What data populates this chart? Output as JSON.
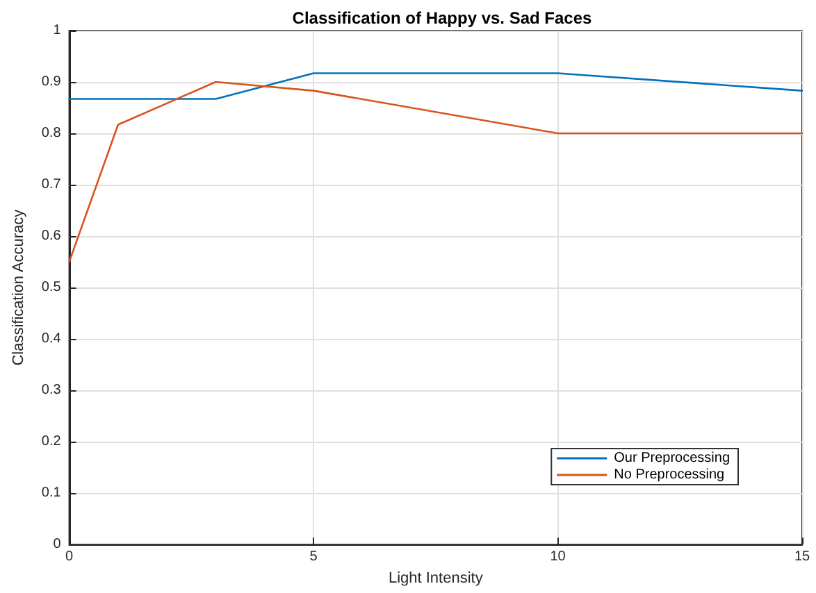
{
  "chart_data": {
    "type": "line",
    "title": "Classification of Happy vs. Sad Faces",
    "xlabel": "Light Intensity",
    "ylabel": "Classification Accuracy",
    "series": [
      {
        "name": "Our Preprocessing",
        "color": "#0072bd",
        "x": [
          0,
          3,
          5,
          10,
          15
        ],
        "values": [
          0.867,
          0.867,
          0.917,
          0.917,
          0.883
        ]
      },
      {
        "name": "No Preprocessing",
        "color": "#d95319",
        "x": [
          0,
          1,
          3,
          5,
          10,
          15
        ],
        "values": [
          0.55,
          0.817,
          0.9,
          0.883,
          0.8,
          0.8
        ]
      }
    ],
    "xlim": [
      0,
      15
    ],
    "xticks": [
      0,
      5,
      10,
      15
    ],
    "ylim": [
      0,
      1
    ],
    "yticks": [
      0,
      0.1,
      0.2,
      0.3,
      0.4,
      0.5,
      0.6,
      0.7,
      0.8,
      0.9,
      1
    ],
    "grid": true,
    "legend": "bottom right",
    "marker": "none",
    "line_style": "solid"
  }
}
